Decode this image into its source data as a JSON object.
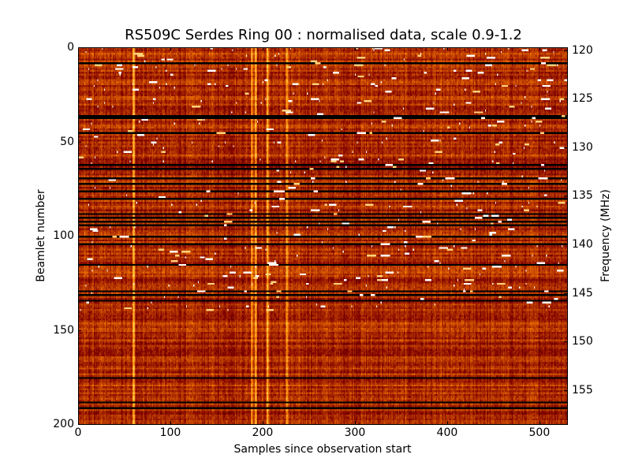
{
  "chart_data": {
    "type": "heatmap",
    "title": "RS509C Serdes Ring 00 : normalised data, scale 0.9-1.2",
    "xlabel": "Samples since observation start",
    "ylabel": "Beamlet number",
    "y2label": "Frequency (MHz)",
    "xlim": [
      0,
      530
    ],
    "ylim": [
      200,
      0
    ],
    "y2lim": [
      158.5,
      119.7
    ],
    "xticks": [
      0,
      100,
      200,
      300,
      400,
      500
    ],
    "yticks": [
      0,
      50,
      100,
      150,
      200
    ],
    "y2ticks": [
      120,
      125,
      130,
      135,
      140,
      145,
      150,
      155
    ],
    "colormap": "afmhot",
    "value_range": [
      0.9,
      1.2
    ],
    "n_beamlets": 200,
    "n_samples": 530,
    "dark_beamlet_rows": [
      8,
      36,
      37,
      45,
      62,
      64,
      69,
      72,
      76,
      80,
      88,
      90,
      92,
      94,
      100,
      104,
      115,
      129,
      131,
      134,
      175,
      188,
      191
    ],
    "bright_sample_columns": [
      60,
      188,
      192,
      205,
      226
    ],
    "grid": false
  }
}
